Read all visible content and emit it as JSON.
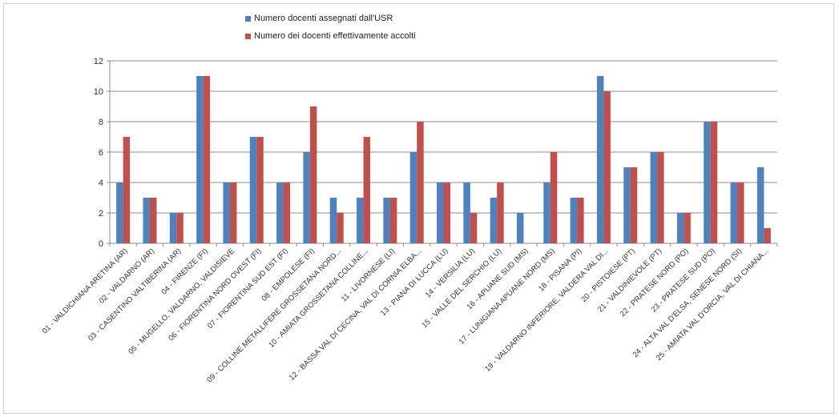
{
  "colors": {
    "series1": "#4f81bd",
    "series2": "#c0504d",
    "grid": "#8c8c8c",
    "axis": "#8c8c8c"
  },
  "chart_data": {
    "type": "bar",
    "title": "",
    "xlabel": "",
    "ylabel": "",
    "ylim": [
      0,
      12
    ],
    "yticks": [
      0,
      2,
      4,
      6,
      8,
      10,
      12
    ],
    "grid": true,
    "legend_position": "top",
    "categories": [
      "01 - VALDICHIANA ARETINA (AR)",
      "02 - VALDARNO (AR)",
      "03 - CASENTINO VALTIBERINA (AR)",
      "04 - FIRENZE (FI)",
      "05 - MUGELLO, VALDARNO, VALDISIEVE",
      "06 - FIORENTINA NORD OVEST (FI)",
      "07 - FIORENTINA SUD EST (FI)",
      "08 - EMPOLESE (FI)",
      "09 - COLLINE METALLIFERE GROSSETANA NORD...",
      "10 - AMIATA GROSSETANA COLLINE...",
      "11 - LIVORNESE (LI)",
      "12 - BASSA VAL DI CECINA, VAL DI CORNIA ELBA...",
      "13 - PIANA DI LUCCA (LU)",
      "14 - VERSILIA (LU)",
      "15 - VALLE DEL SERCHIO (LU)",
      "16 - APUANE SUD (MS)",
      "17 - LUNIGIANA APUANE NORD (MS)",
      "18 - PISANA (PI)",
      "19 - VALDARNO INFERIORE, VALDERA VAL DI...",
      "20 - PISTOIESE (PT)",
      "21 - VALDINIEVOLE (PT)",
      "22 - PRATESE NORD (PO)",
      "23 - PRATESE SUD (PO)",
      "24 - ALTA VAL D'ELSA, SENESE NORD (SI)",
      "25 - AMIATA VAL D'ORCIA, VAL DI CHIANA..."
    ],
    "series": [
      {
        "name": "Numero docenti assegnati dall'USR",
        "values": [
          4,
          3,
          2,
          11,
          4,
          7,
          4,
          6,
          3,
          3,
          3,
          6,
          4,
          4,
          3,
          2,
          4,
          3,
          11,
          5,
          6,
          2,
          8,
          4,
          5
        ]
      },
      {
        "name": "Numero dei docenti effettivamente accolti",
        "values": [
          7,
          3,
          2,
          11,
          4,
          7,
          4,
          9,
          2,
          7,
          3,
          8,
          4,
          2,
          4,
          0,
          6,
          3,
          10,
          5,
          6,
          2,
          8,
          4,
          1
        ]
      }
    ]
  }
}
